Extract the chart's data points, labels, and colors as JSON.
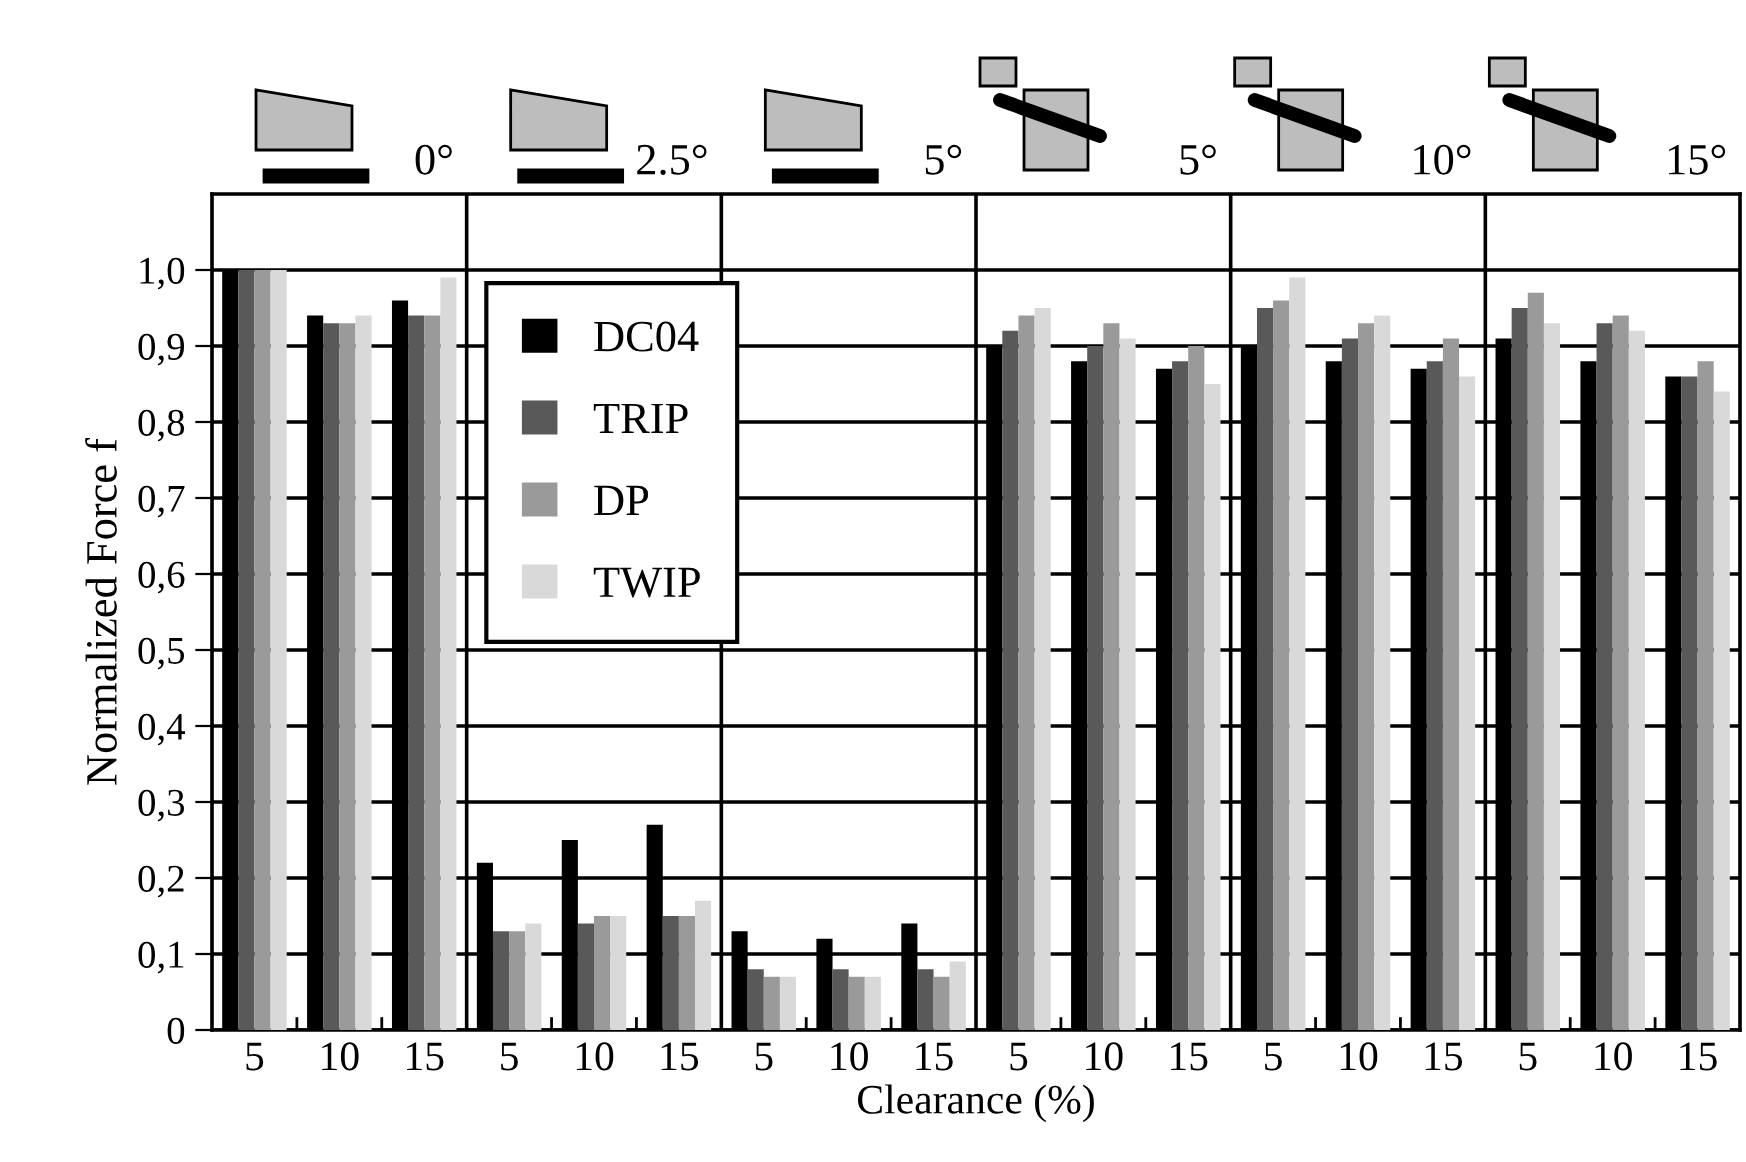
{
  "chart_data": {
    "type": "bar",
    "xlabel": "Clearance (%)",
    "ylabel": "Normalized Force f",
    "annotations": [
      "0°",
      "2.5°",
      "5°",
      "5°",
      "10°",
      "15°"
    ],
    "categories": [
      "5",
      "10",
      "15",
      "5",
      "10",
      "15",
      "5",
      "10",
      "15",
      "5",
      "10",
      "15",
      "5",
      "10",
      "15",
      "5",
      "10",
      "15"
    ],
    "ylim": [
      0,
      1.1
    ],
    "yticks": [
      0,
      {
        "value": 0.1,
        "label": "0,1"
      },
      {
        "value": 0.2,
        "label": "0,2"
      },
      {
        "value": 0.3,
        "label": "0,3"
      },
      {
        "value": 0.4,
        "label": "0,4"
      },
      {
        "value": 0.5,
        "label": "0,5"
      },
      {
        "value": 0.6,
        "label": "0,6"
      },
      {
        "value": 0.7,
        "label": "0,7"
      },
      {
        "value": 0.8,
        "label": "0,8"
      },
      {
        "value": 0.9,
        "label": "0,9"
      },
      {
        "value": 1.0,
        "label": "1,0"
      }
    ],
    "grid": "y",
    "legend": "top left",
    "series": [
      {
        "name": "DC04",
        "color": "#000000",
        "values": [
          1.0,
          0.94,
          0.96,
          0.22,
          0.25,
          0.27,
          0.13,
          0.12,
          0.14,
          0.9,
          0.88,
          0.87,
          0.9,
          0.88,
          0.87,
          0.91,
          0.88,
          0.86
        ]
      },
      {
        "name": "TRIP",
        "color": "#595959",
        "values": [
          1.0,
          0.93,
          0.94,
          0.13,
          0.14,
          0.15,
          0.08,
          0.08,
          0.08,
          0.92,
          0.9,
          0.88,
          0.95,
          0.91,
          0.88,
          0.95,
          0.93,
          0.86
        ]
      },
      {
        "name": "DP",
        "color": "#9a9a9a",
        "values": [
          1.0,
          0.93,
          0.94,
          0.13,
          0.15,
          0.15,
          0.07,
          0.07,
          0.07,
          0.94,
          0.93,
          0.9,
          0.96,
          0.93,
          0.91,
          0.97,
          0.94,
          0.88
        ]
      },
      {
        "name": "TWIP",
        "color": "#d9d9d9",
        "values": [
          1.0,
          0.94,
          0.99,
          0.14,
          0.15,
          0.17,
          0.07,
          0.07,
          0.09,
          0.95,
          0.91,
          0.85,
          0.99,
          0.94,
          0.86,
          0.93,
          0.92,
          0.84
        ]
      }
    ]
  }
}
